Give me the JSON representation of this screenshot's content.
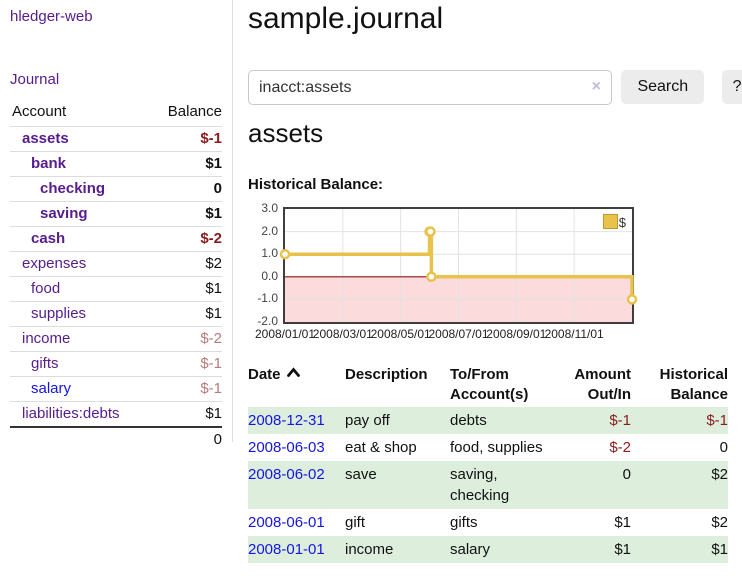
{
  "sidebar": {
    "app_title": "hledger-web",
    "nav": {
      "journal_label": "Journal"
    },
    "table": {
      "account_header": "Account",
      "balance_header": "Balance",
      "accounts": [
        {
          "name": "assets",
          "depth": 1,
          "bold": true,
          "balance": "$-1",
          "balance_style": "neg",
          "link_style": "purple"
        },
        {
          "name": "bank",
          "depth": 2,
          "bold": true,
          "balance": "$1",
          "balance_style": "pos",
          "link_style": "purple"
        },
        {
          "name": "checking",
          "depth": 3,
          "bold": true,
          "balance": "0",
          "balance_style": "pos",
          "link_style": "purple"
        },
        {
          "name": "saving",
          "depth": 3,
          "bold": true,
          "balance": "$1",
          "balance_style": "pos",
          "link_style": "purple"
        },
        {
          "name": "cash",
          "depth": 2,
          "bold": true,
          "balance": "$-2",
          "balance_style": "neg",
          "link_style": "purple"
        },
        {
          "name": "expenses",
          "depth": 1,
          "bold": false,
          "balance": "$2",
          "balance_style": "pos",
          "link_style": "purple"
        },
        {
          "name": "food",
          "depth": 2,
          "bold": false,
          "balance": "$1",
          "balance_style": "pos",
          "link_style": "purple"
        },
        {
          "name": "supplies",
          "depth": 2,
          "bold": false,
          "balance": "$1",
          "balance_style": "pos",
          "link_style": "purple"
        },
        {
          "name": "income",
          "depth": 1,
          "bold": false,
          "balance": "$-2",
          "balance_style": "neg-muted",
          "link_style": "purple"
        },
        {
          "name": "gifts",
          "depth": 2,
          "bold": false,
          "balance": "$-1",
          "balance_style": "neg-muted",
          "link_style": "purple"
        },
        {
          "name": "salary",
          "depth": 2,
          "bold": false,
          "balance": "$-1",
          "balance_style": "neg-muted",
          "link_style": "blue"
        },
        {
          "name": "liabilities:debts",
          "depth": 1,
          "bold": false,
          "balance": "$1",
          "balance_style": "pos",
          "link_style": "purple"
        }
      ],
      "total": "0"
    }
  },
  "header": {
    "title": "sample.journal"
  },
  "search": {
    "value": "inacct:assets",
    "clear_icon": "×",
    "button_label": "Search",
    "help_label": "?"
  },
  "account_page": {
    "heading": "assets",
    "chart_label": "Historical Balance:"
  },
  "chart_data": {
    "type": "line",
    "style": "step-after",
    "title": "Historical Balance",
    "series": [
      {
        "name": "$",
        "x": [
          "2008-01-01",
          "2008-06-01",
          "2008-06-02",
          "2008-06-03",
          "2008-12-31"
        ],
        "values": [
          1,
          2,
          2,
          0,
          -1
        ]
      }
    ],
    "x_range": [
      "2008-01-01",
      "2008-12-31"
    ],
    "ylim": [
      -2,
      3
    ],
    "y_tick_values": [
      3,
      2,
      1,
      0,
      -1,
      -2
    ],
    "y_ticks": [
      "3.0",
      "2.0",
      "1.0",
      "0.0",
      "-1.0",
      "-2.0"
    ],
    "x_ticks": [
      "2008/01/01",
      "2008/03/01",
      "2008/05/01",
      "2008/07/01",
      "2008/09/01",
      "2008/11/01"
    ],
    "legend": {
      "label": "$",
      "position": "top-right"
    },
    "grid": true,
    "line_color": "#e9c24b",
    "marker_fill": "#ffffff",
    "negative_fill": "#fbdbdb",
    "zero_line_color": "#8b1111",
    "grid_color": "#e2e2e2",
    "border_color": "#3e3e3e"
  },
  "transactions": {
    "headers": {
      "date": "Date",
      "description": "Description",
      "tofrom": "To/From Account(s)",
      "amount": "Amount Out/In",
      "balance": "Historical Balance"
    },
    "sort": {
      "column": "date",
      "direction": "ascending",
      "icon": "chevron-up-icon"
    },
    "rows": [
      {
        "date": "2008-12-31",
        "description": "pay off",
        "tofrom": "debts",
        "amount": "$-1",
        "amount_style": "neg",
        "balance": "$-1",
        "balance_style": "neg"
      },
      {
        "date": "2008-06-03",
        "description": "eat & shop",
        "tofrom": "food, supplies",
        "amount": "$-2",
        "amount_style": "neg",
        "balance": "0",
        "balance_style": "pos"
      },
      {
        "date": "2008-06-02",
        "description": "save",
        "tofrom": "saving, checking",
        "amount": "0",
        "amount_style": "pos",
        "balance": "$2",
        "balance_style": "pos"
      },
      {
        "date": "2008-06-01",
        "description": "gift",
        "tofrom": "gifts",
        "amount": "$1",
        "amount_style": "pos",
        "balance": "$2",
        "balance_style": "pos"
      },
      {
        "date": "2008-01-01",
        "description": "income",
        "tofrom": "salary",
        "amount": "$1",
        "amount_style": "pos",
        "balance": "$1",
        "balance_style": "pos"
      }
    ]
  },
  "colors": {
    "link_purple": "#571c8d",
    "link_blue": "#1515e0",
    "negative_red": "#8b1c1c",
    "negative_muted_red": "#b87a7a",
    "row_stripe_green": "#ddeedd",
    "chart_gold": "#e9c24b",
    "chart_negative_pink": "#fbdbdb"
  }
}
